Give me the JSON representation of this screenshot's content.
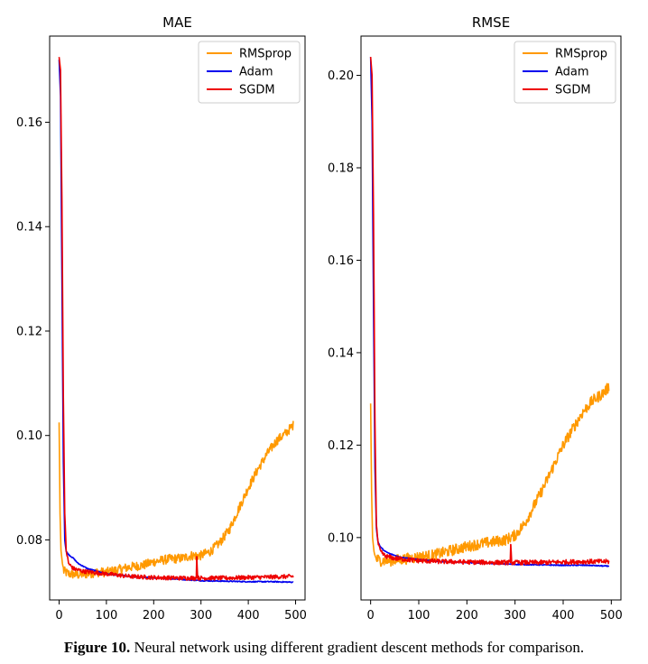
{
  "caption": {
    "label": "Figure 10.",
    "text": " Neural network using different gradient descent methods for comparison."
  },
  "colors": {
    "RMSprop": "#ff9900",
    "Adam": "#0000ee",
    "SGDM": "#ee0000"
  },
  "chart_data": [
    {
      "type": "line",
      "title": "MAE",
      "xlabel": "",
      "ylabel": "",
      "xlim": [
        -20,
        520
      ],
      "ylim": [
        0.0685,
        0.1765
      ],
      "xticks": [
        0,
        100,
        200,
        300,
        400,
        500
      ],
      "xtick_labels": [
        "0",
        "100",
        "200",
        "300",
        "400",
        "500"
      ],
      "yticks": [
        0.08,
        0.1,
        0.12,
        0.14,
        0.16
      ],
      "ytick_labels": [
        "0.08",
        "0.10",
        "0.12",
        "0.14",
        "0.16"
      ],
      "legend": [
        "RMSprop",
        "Adam",
        "SGDM"
      ],
      "legend_position": "upper right",
      "series": [
        {
          "name": "RMSprop",
          "points": [
            [
              0,
              0.1025
            ],
            [
              2,
              0.085
            ],
            [
              4,
              0.078
            ],
            [
              7,
              0.0755
            ],
            [
              10,
              0.074
            ],
            [
              20,
              0.0735
            ],
            [
              40,
              0.0733
            ],
            [
              60,
              0.0735
            ],
            [
              80,
              0.0738
            ],
            [
              100,
              0.0738
            ],
            [
              120,
              0.0742
            ],
            [
              150,
              0.0748
            ],
            [
              180,
              0.0752
            ],
            [
              200,
              0.0758
            ],
            [
              230,
              0.0763
            ],
            [
              260,
              0.0765
            ],
            [
              280,
              0.077
            ],
            [
              300,
              0.077
            ],
            [
              320,
              0.0778
            ],
            [
              340,
              0.0795
            ],
            [
              360,
              0.082
            ],
            [
              380,
              0.086
            ],
            [
              400,
              0.09
            ],
            [
              420,
              0.0935
            ],
            [
              440,
              0.0965
            ],
            [
              460,
              0.099
            ],
            [
              480,
              0.1005
            ],
            [
              495,
              0.102
            ]
          ],
          "noise": 0.0009
        },
        {
          "name": "Adam",
          "points": [
            [
              0,
              0.172
            ],
            [
              3,
              0.165
            ],
            [
              6,
              0.13
            ],
            [
              9,
              0.095
            ],
            [
              12,
              0.08
            ],
            [
              15,
              0.0778
            ],
            [
              20,
              0.0772
            ],
            [
              30,
              0.0765
            ],
            [
              40,
              0.0755
            ],
            [
              60,
              0.0745
            ],
            [
              80,
              0.074
            ],
            [
              100,
              0.0735
            ],
            [
              150,
              0.073
            ],
            [
              200,
              0.0727
            ],
            [
              250,
              0.0725
            ],
            [
              300,
              0.0722
            ],
            [
              350,
              0.0721
            ],
            [
              400,
              0.072
            ],
            [
              450,
              0.072
            ],
            [
              495,
              0.0719
            ]
          ],
          "noise": 0.0001
        },
        {
          "name": "SGDM",
          "points": [
            [
              0,
              0.1725
            ],
            [
              3,
              0.17
            ],
            [
              6,
              0.145
            ],
            [
              9,
              0.108
            ],
            [
              12,
              0.085
            ],
            [
              15,
              0.078
            ],
            [
              20,
              0.0755
            ],
            [
              30,
              0.0745
            ],
            [
              50,
              0.074
            ],
            [
              100,
              0.0735
            ],
            [
              150,
              0.073
            ],
            [
              200,
              0.0728
            ],
            [
              250,
              0.0727
            ],
            [
              290,
              0.0727
            ],
            [
              291,
              0.0768
            ],
            [
              293,
              0.0727
            ],
            [
              350,
              0.0727
            ],
            [
              400,
              0.0728
            ],
            [
              450,
              0.0729
            ],
            [
              495,
              0.073
            ]
          ],
          "noise": 0.0004
        }
      ]
    },
    {
      "type": "line",
      "title": "RMSE",
      "xlabel": "",
      "ylabel": "",
      "xlim": [
        -20,
        520
      ],
      "ylim": [
        0.0865,
        0.2085
      ],
      "xticks": [
        0,
        100,
        200,
        300,
        400,
        500
      ],
      "xtick_labels": [
        "0",
        "100",
        "200",
        "300",
        "400",
        "500"
      ],
      "yticks": [
        0.1,
        0.12,
        0.14,
        0.16,
        0.18,
        0.2
      ],
      "ytick_labels": [
        "0.10",
        "0.12",
        "0.14",
        "0.16",
        "0.18",
        "0.20"
      ],
      "legend": [
        "RMSprop",
        "Adam",
        "SGDM"
      ],
      "legend_position": "upper right",
      "series": [
        {
          "name": "RMSprop",
          "points": [
            [
              0,
              0.129
            ],
            [
              2,
              0.11
            ],
            [
              4,
              0.1
            ],
            [
              7,
              0.097
            ],
            [
              10,
              0.0955
            ],
            [
              20,
              0.095
            ],
            [
              40,
              0.095
            ],
            [
              60,
              0.0952
            ],
            [
              80,
              0.0955
            ],
            [
              100,
              0.0958
            ],
            [
              130,
              0.0962
            ],
            [
              160,
              0.097
            ],
            [
              190,
              0.0978
            ],
            [
              220,
              0.0985
            ],
            [
              250,
              0.099
            ],
            [
              280,
              0.0995
            ],
            [
              300,
              0.1005
            ],
            [
              320,
              0.103
            ],
            [
              340,
              0.107
            ],
            [
              360,
              0.111
            ],
            [
              380,
              0.1155
            ],
            [
              400,
              0.12
            ],
            [
              420,
              0.1235
            ],
            [
              440,
              0.127
            ],
            [
              460,
              0.1295
            ],
            [
              480,
              0.131
            ],
            [
              495,
              0.1325
            ]
          ],
          "noise": 0.0012
        },
        {
          "name": "Adam",
          "points": [
            [
              0,
              0.204
            ],
            [
              3,
              0.19
            ],
            [
              6,
              0.15
            ],
            [
              9,
              0.115
            ],
            [
              12,
              0.102
            ],
            [
              15,
              0.0992
            ],
            [
              20,
              0.098
            ],
            [
              30,
              0.097
            ],
            [
              40,
              0.0965
            ],
            [
              60,
              0.0958
            ],
            [
              80,
              0.0955
            ],
            [
              100,
              0.0952
            ],
            [
              150,
              0.0948
            ],
            [
              200,
              0.0946
            ],
            [
              250,
              0.0944
            ],
            [
              300,
              0.0942
            ],
            [
              350,
              0.0941
            ],
            [
              400,
              0.094
            ],
            [
              450,
              0.094
            ],
            [
              495,
              0.0938
            ]
          ],
          "noise": 0.0001
        },
        {
          "name": "SGDM",
          "points": [
            [
              0,
              0.204
            ],
            [
              3,
              0.2
            ],
            [
              6,
              0.17
            ],
            [
              9,
              0.125
            ],
            [
              12,
              0.103
            ],
            [
              15,
              0.099
            ],
            [
              20,
              0.097
            ],
            [
              30,
              0.096
            ],
            [
              50,
              0.0955
            ],
            [
              100,
              0.095
            ],
            [
              150,
              0.0948
            ],
            [
              200,
              0.0947
            ],
            [
              250,
              0.0946
            ],
            [
              290,
              0.0946
            ],
            [
              291,
              0.0985
            ],
            [
              293,
              0.0946
            ],
            [
              350,
              0.0946
            ],
            [
              400,
              0.0947
            ],
            [
              450,
              0.0948
            ],
            [
              495,
              0.0948
            ]
          ],
          "noise": 0.0005
        }
      ]
    }
  ]
}
